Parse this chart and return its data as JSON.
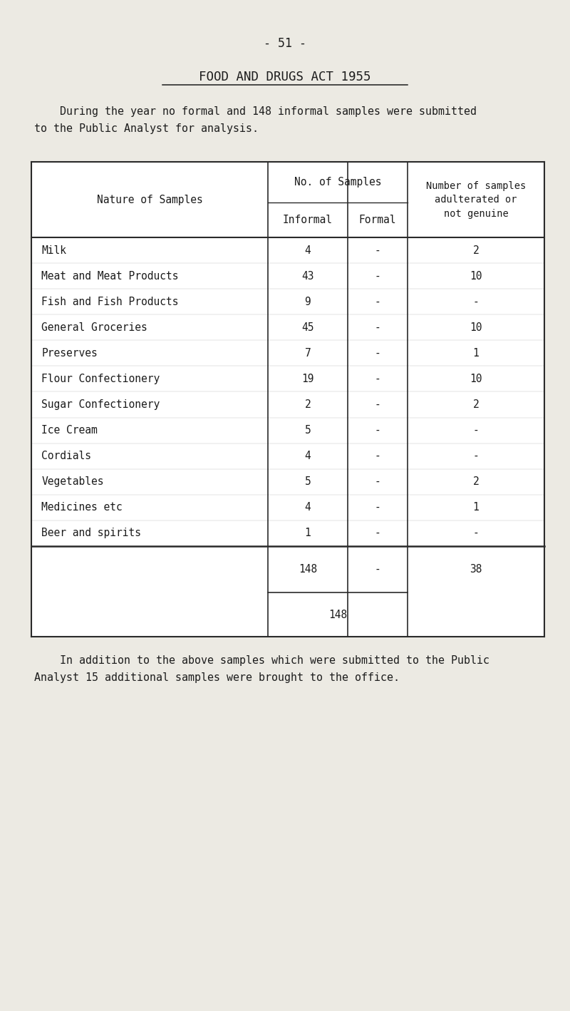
{
  "page_number": "- 51 -",
  "title": "FOOD AND DRUGS ACT 1955",
  "intro_line1": "    During the year no formal and 148 informal samples were submitted",
  "intro_line2": "to the Public Analyst for analysis.",
  "footer_line1": "    In addition to the above samples which were submitted to the Public",
  "footer_line2": "Analyst 15 additional samples were brought to the office.",
  "rows": [
    [
      "Milk",
      "4",
      "-",
      "2"
    ],
    [
      "Meat and Meat Products",
      "43",
      "-",
      "10"
    ],
    [
      "Fish and Fish Products",
      "9",
      "-",
      "-"
    ],
    [
      "General Groceries",
      "45",
      "-",
      "10"
    ],
    [
      "Preserves",
      "7",
      "-",
      "1"
    ],
    [
      "Flour Confectionery",
      "19",
      "-",
      "10"
    ],
    [
      "Sugar Confectionery",
      "2",
      "-",
      "2"
    ],
    [
      "Ice Cream",
      "5",
      "-",
      "-"
    ],
    [
      "Cordials",
      "4",
      "-",
      "-"
    ],
    [
      "Vegetables",
      "5",
      "-",
      "2"
    ],
    [
      "Medicines etc",
      "4",
      "-",
      "1"
    ],
    [
      "Beer and spirits",
      "1",
      "-",
      "-"
    ]
  ],
  "bg_color": "#eceae3",
  "table_bg": "#f5f4f0",
  "text_color": "#1c1c1c",
  "line_color": "#2a2a2a"
}
